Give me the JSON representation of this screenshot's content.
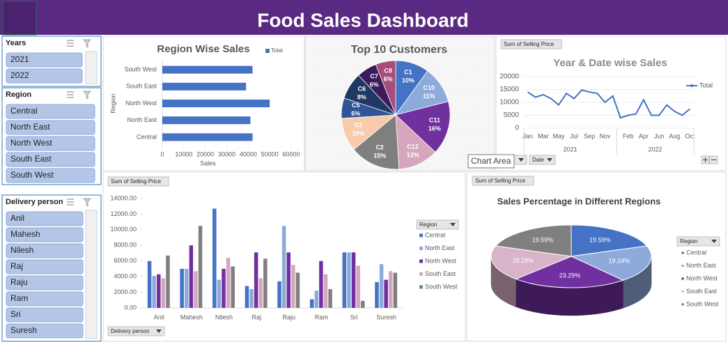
{
  "header": {
    "title": "Food Sales Dashboard"
  },
  "slicers": [
    {
      "title": "Years",
      "items": [
        "2021",
        "2022"
      ]
    },
    {
      "title": "Region",
      "items": [
        "Central",
        "North East",
        "North West",
        "South East",
        "South West"
      ]
    },
    {
      "title": "Delivery person",
      "items": [
        "Anil",
        "Mahesh",
        "Nilesh",
        "Raj",
        "Raju",
        "Ram",
        "Sri",
        "Suresh"
      ]
    }
  ],
  "tooltip": "Chart Area",
  "chart_data": [
    {
      "type": "bar",
      "orientation": "horizontal",
      "title": "Region Wise Sales",
      "x_label": "Sales",
      "y_label": "Region",
      "categories": [
        "Central",
        "North East",
        "North West",
        "South East",
        "South West"
      ],
      "series": [
        {
          "name": "Total",
          "color": "#4472c4",
          "values": [
            42000,
            41000,
            50000,
            39000,
            42000
          ]
        }
      ],
      "xlim": [
        0,
        60000
      ],
      "xticks": [
        0,
        10000,
        20000,
        30000,
        40000,
        50000,
        60000
      ]
    },
    {
      "type": "pie",
      "title": "Top 10 Customers",
      "categories": [
        "C1",
        "C10",
        "C11",
        "C12",
        "C2",
        "C3",
        "C5",
        "C6",
        "C7",
        "C8"
      ],
      "values": [
        10,
        11,
        16,
        12,
        15,
        10,
        6,
        8,
        6,
        6
      ],
      "value_labels": [
        "10%",
        "11%",
        "16%",
        "12%",
        "15%",
        "10%",
        "6%",
        "8%",
        "6%",
        "6%"
      ],
      "colors": [
        "#4472c4",
        "#8eaadb",
        "#7030a0",
        "#d5a6bd",
        "#7f7f7f",
        "#f8cbad",
        "#2f5597",
        "#203864",
        "#3c1a5b",
        "#a64d79"
      ]
    },
    {
      "type": "line",
      "title": "Year & Date wise Sales",
      "field_buttons": [
        "Sum of Selling Price",
        "Years",
        "Date"
      ],
      "categories": [
        "Jan",
        null,
        "Mar",
        null,
        "May",
        null,
        "Jul",
        null,
        "Sep",
        null,
        "Nov",
        null,
        null,
        "Feb",
        null,
        "Apr",
        null,
        "Jun",
        null,
        "Aug",
        null,
        "Oct"
      ],
      "groups": [
        {
          "label": "2021",
          "count": 12
        },
        {
          "label": "2022",
          "count": 10
        }
      ],
      "series": [
        {
          "name": "Total",
          "color": "#4472c4",
          "values": [
            14000,
            12000,
            13000,
            11500,
            9000,
            13500,
            11500,
            14800,
            14000,
            13500,
            10000,
            12500,
            4000,
            5000,
            5500,
            11000,
            5000,
            5000,
            9000,
            6500,
            5000,
            7500
          ]
        }
      ],
      "ylim": [
        0,
        20000
      ],
      "yticks": [
        0,
        5000,
        10000,
        15000,
        20000
      ],
      "grid": true
    },
    {
      "type": "bar",
      "orientation": "vertical",
      "field_buttons": [
        "Sum of Selling Price",
        "Delivery person"
      ],
      "legend_title": "Region",
      "categories": [
        "Anil",
        "Mahesh",
        "Nilesh",
        "Raj",
        "Raju",
        "Ram",
        "Sri",
        "Suresh"
      ],
      "series": [
        {
          "name": "Central",
          "color": "#4472c4",
          "values": [
            6000,
            5000,
            12700,
            2800,
            3400,
            1100,
            7100,
            3300
          ]
        },
        {
          "name": "North East",
          "color": "#8eaadb",
          "values": [
            4100,
            5000,
            3600,
            2400,
            10500,
            2200,
            7100,
            5600
          ]
        },
        {
          "name": "North West",
          "color": "#7030a0",
          "values": [
            4300,
            8000,
            5000,
            7100,
            7100,
            6000,
            7100,
            3600
          ]
        },
        {
          "name": "South East",
          "color": "#d5a6bd",
          "values": [
            3800,
            4700,
            6400,
            3800,
            5500,
            4300,
            5400,
            4700
          ]
        },
        {
          "name": "South West",
          "color": "#7f7f7f",
          "values": [
            6700,
            10500,
            5300,
            6300,
            4500,
            2400,
            900,
            4500
          ]
        }
      ],
      "ylim": [
        0,
        14000
      ],
      "yticks": [
        {
          "value": 0,
          "label": "0.00"
        },
        {
          "value": 2000,
          "label": "2000.00"
        },
        {
          "value": 4000,
          "label": "4000.00"
        },
        {
          "value": 6000,
          "label": "6000.00"
        },
        {
          "value": 8000,
          "label": "8000.00"
        },
        {
          "value": 10000,
          "label": "10000.00"
        },
        {
          "value": 12000,
          "label": "12000.00"
        },
        {
          "value": 14000,
          "label": "14000.00"
        }
      ]
    },
    {
      "type": "pie3d",
      "title": "Sales Percentage in Different Regions",
      "field_buttons": [
        "Sum of Selling Price"
      ],
      "legend_title": "Region",
      "categories": [
        "Central",
        "North East",
        "North West",
        "South East",
        "South West"
      ],
      "values": [
        19.59,
        19.24,
        23.29,
        18.29,
        19.59
      ],
      "value_labels": [
        "19.59%",
        "19.24%",
        "23.29%",
        "18.29%",
        "19.59%"
      ],
      "colors": [
        "#4472c4",
        "#8eaadb",
        "#7030a0",
        "#d9b3c8",
        "#7f7f7f"
      ]
    }
  ]
}
